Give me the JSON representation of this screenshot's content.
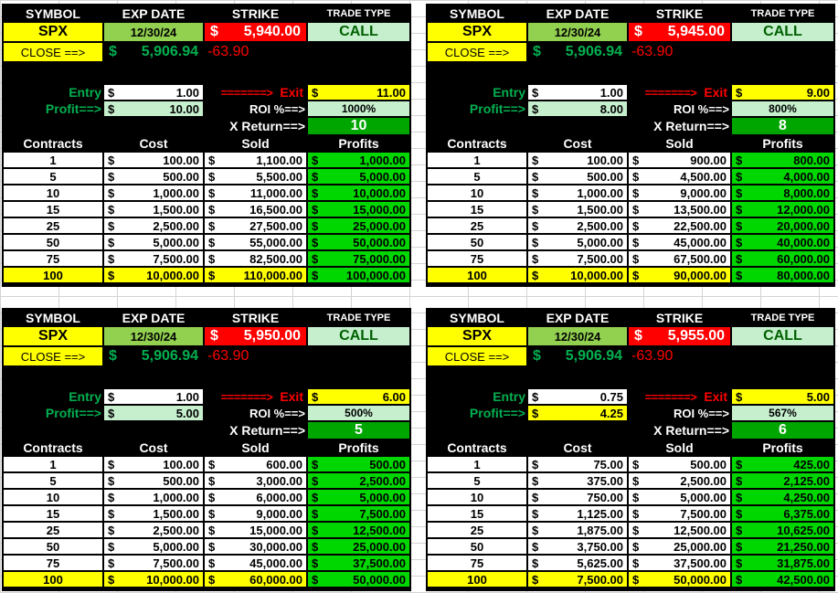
{
  "headers": {
    "symbol": "SYMBOL",
    "exp_date": "EXP DATE",
    "strike": "STRIKE",
    "trade_type": "TRADE TYPE"
  },
  "labels": {
    "close": "CLOSE ==>",
    "entry": "Entry",
    "profit": "Profit==>",
    "arrow": "=======>",
    "exit": "Exit",
    "roi": "ROI %==>",
    "x_return": "X Return==>",
    "dollar": "$",
    "col_contracts": "Contracts",
    "col_cost": "Cost",
    "col_sold": "Sold",
    "col_profits": "Profits"
  },
  "panels": [
    {
      "symbol": "SPX",
      "exp_date": "12/30/24",
      "strike": "5,940.00",
      "trade_type": "CALL",
      "close": "5,906.94",
      "change": "-63.90",
      "entry": "1.00",
      "exit": "11.00",
      "profit": "10.00",
      "roi": "1000%",
      "x_return": "10",
      "rows": [
        {
          "contracts": "1",
          "cost": "100.00",
          "sold": "1,100.00",
          "profit": "1,000.00"
        },
        {
          "contracts": "5",
          "cost": "500.00",
          "sold": "5,500.00",
          "profit": "5,000.00"
        },
        {
          "contracts": "10",
          "cost": "1,000.00",
          "sold": "11,000.00",
          "profit": "10,000.00"
        },
        {
          "contracts": "15",
          "cost": "1,500.00",
          "sold": "16,500.00",
          "profit": "15,000.00"
        },
        {
          "contracts": "25",
          "cost": "2,500.00",
          "sold": "27,500.00",
          "profit": "25,000.00"
        },
        {
          "contracts": "50",
          "cost": "5,000.00",
          "sold": "55,000.00",
          "profit": "50,000.00"
        },
        {
          "contracts": "75",
          "cost": "7,500.00",
          "sold": "82,500.00",
          "profit": "75,000.00"
        },
        {
          "contracts": "100",
          "cost": "10,000.00",
          "sold": "110,000.00",
          "profit": "100,000.00"
        }
      ]
    },
    {
      "symbol": "SPX",
      "exp_date": "12/30/24",
      "strike": "5,945.00",
      "trade_type": "CALL",
      "close": "5,906.94",
      "change": "-63.90",
      "entry": "1.00",
      "exit": "9.00",
      "profit": "8.00",
      "roi": "800%",
      "x_return": "8",
      "rows": [
        {
          "contracts": "1",
          "cost": "100.00",
          "sold": "900.00",
          "profit": "800.00"
        },
        {
          "contracts": "5",
          "cost": "500.00",
          "sold": "4,500.00",
          "profit": "4,000.00"
        },
        {
          "contracts": "10",
          "cost": "1,000.00",
          "sold": "9,000.00",
          "profit": "8,000.00"
        },
        {
          "contracts": "15",
          "cost": "1,500.00",
          "sold": "13,500.00",
          "profit": "12,000.00"
        },
        {
          "contracts": "25",
          "cost": "2,500.00",
          "sold": "22,500.00",
          "profit": "20,000.00"
        },
        {
          "contracts": "50",
          "cost": "5,000.00",
          "sold": "45,000.00",
          "profit": "40,000.00"
        },
        {
          "contracts": "75",
          "cost": "7,500.00",
          "sold": "67,500.00",
          "profit": "60,000.00"
        },
        {
          "contracts": "100",
          "cost": "10,000.00",
          "sold": "90,000.00",
          "profit": "80,000.00"
        }
      ]
    },
    {
      "symbol": "SPX",
      "exp_date": "12/30/24",
      "strike": "5,950.00",
      "trade_type": "CALL",
      "close": "5,906.94",
      "change": "-63.90",
      "entry": "1.00",
      "exit": "6.00",
      "profit": "5.00",
      "roi": "500%",
      "x_return": "5",
      "rows": [
        {
          "contracts": "1",
          "cost": "100.00",
          "sold": "600.00",
          "profit": "500.00"
        },
        {
          "contracts": "5",
          "cost": "500.00",
          "sold": "3,000.00",
          "profit": "2,500.00"
        },
        {
          "contracts": "10",
          "cost": "1,000.00",
          "sold": "6,000.00",
          "profit": "5,000.00"
        },
        {
          "contracts": "15",
          "cost": "1,500.00",
          "sold": "9,000.00",
          "profit": "7,500.00"
        },
        {
          "contracts": "25",
          "cost": "2,500.00",
          "sold": "15,000.00",
          "profit": "12,500.00"
        },
        {
          "contracts": "50",
          "cost": "5,000.00",
          "sold": "30,000.00",
          "profit": "25,000.00"
        },
        {
          "contracts": "75",
          "cost": "7,500.00",
          "sold": "45,000.00",
          "profit": "37,500.00"
        },
        {
          "contracts": "100",
          "cost": "10,000.00",
          "sold": "60,000.00",
          "profit": "50,000.00"
        }
      ]
    },
    {
      "symbol": "SPX",
      "exp_date": "12/30/24",
      "strike": "5,955.00",
      "trade_type": "CALL",
      "close": "5,906.94",
      "change": "-63.90",
      "entry": "0.75",
      "exit": "5.00",
      "profit": "4.25",
      "roi": "567%",
      "x_return": "6",
      "rows": [
        {
          "contracts": "1",
          "cost": "75.00",
          "sold": "500.00",
          "profit": "425.00"
        },
        {
          "contracts": "5",
          "cost": "375.00",
          "sold": "2,500.00",
          "profit": "2,125.00"
        },
        {
          "contracts": "10",
          "cost": "750.00",
          "sold": "5,000.00",
          "profit": "4,250.00"
        },
        {
          "contracts": "15",
          "cost": "1,125.00",
          "sold": "7,500.00",
          "profit": "6,375.00"
        },
        {
          "contracts": "25",
          "cost": "1,875.00",
          "sold": "12,500.00",
          "profit": "10,625.00"
        },
        {
          "contracts": "50",
          "cost": "3,750.00",
          "sold": "25,000.00",
          "profit": "21,250.00"
        },
        {
          "contracts": "75",
          "cost": "5,625.00",
          "sold": "37,500.00",
          "profit": "31,875.00"
        },
        {
          "contracts": "100",
          "cost": "7,500.00",
          "sold": "50,000.00",
          "profit": "42,500.00"
        }
      ]
    }
  ]
}
